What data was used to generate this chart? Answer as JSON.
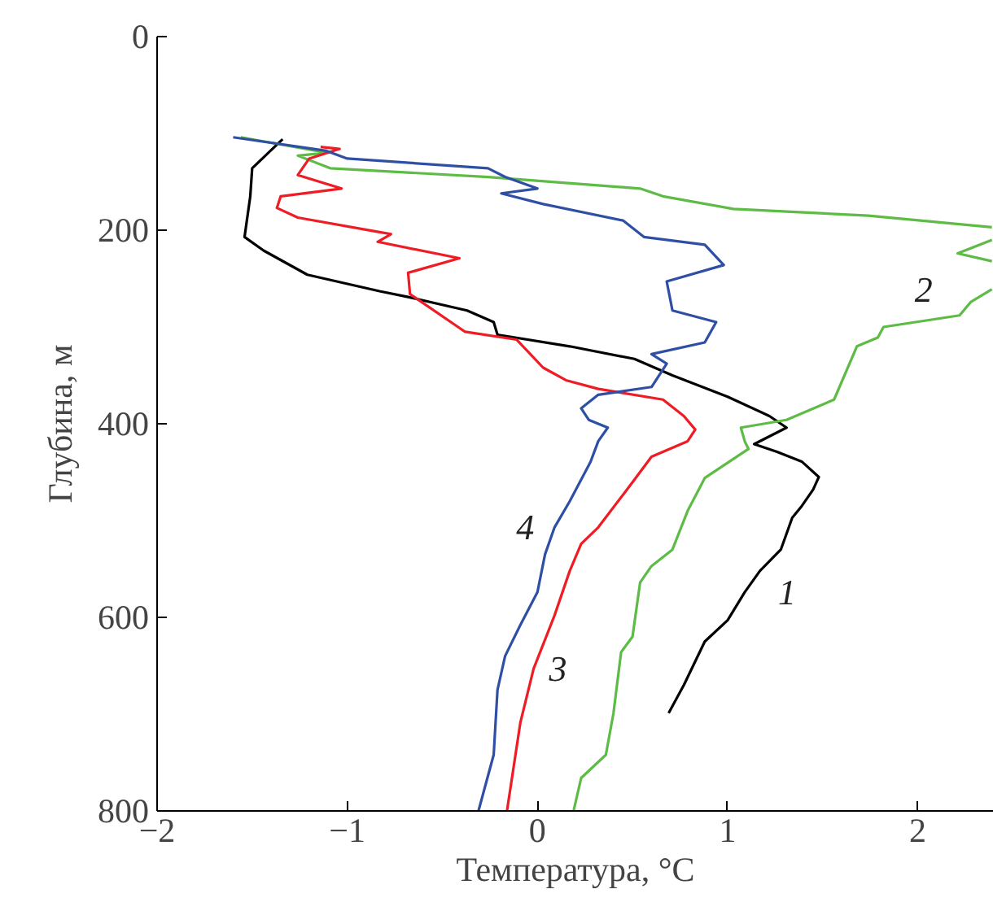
{
  "chart_data": {
    "type": "line",
    "xlabel": "Температура, °C",
    "ylabel": "Глубина, м",
    "xlim": [
      -2,
      2.4
    ],
    "xticks": [
      {
        "value": -2,
        "label": "−2"
      },
      {
        "value": -1,
        "label": "−1"
      },
      0,
      1,
      2
    ],
    "ylim": [
      800,
      0
    ],
    "yticks": [
      0,
      200,
      400,
      600,
      800
    ],
    "grid": false,
    "legend": false,
    "marker": "none",
    "line_style": "solid",
    "series": [
      {
        "name": "1",
        "color": "#000000",
        "x": [
          -1.34,
          -1.5,
          -1.51,
          -1.54,
          -1.44,
          -1.21,
          -0.83,
          -0.68,
          -0.37,
          -0.23,
          -0.21,
          0.17,
          0.51,
          0.71,
          1.0,
          1.22,
          1.31,
          1.14,
          1.26,
          1.39,
          1.48,
          1.45,
          1.39,
          1.34,
          1.28,
          1.17,
          1.09,
          1.0,
          0.88,
          0.77,
          0.69
        ],
        "values": [
          106,
          136,
          165,
          207,
          221,
          246,
          263,
          269,
          283,
          295,
          308,
          320,
          333,
          350,
          372,
          392,
          404,
          421,
          429,
          439,
          455,
          468,
          485,
          497,
          530,
          552,
          574,
          603,
          625,
          670,
          699
        ]
      },
      {
        "name": "2",
        "color": "#5dbb46",
        "x": [
          -1.56,
          -1.11,
          -1.26,
          -1.09,
          -0.26,
          0.54,
          0.66,
          1.03,
          1.74,
          2.39,
          null,
          2.39,
          2.21,
          2.39,
          null,
          2.39,
          2.28,
          2.22,
          1.82,
          1.79,
          1.68,
          1.56,
          1.31,
          1.07,
          1.09,
          1.11,
          0.88,
          0.79,
          0.71,
          0.6,
          0.54,
          0.5,
          0.44,
          0.4,
          0.36,
          0.23,
          0.19
        ],
        "values": [
          104,
          120,
          123,
          136,
          145,
          157,
          165,
          178,
          185,
          197,
          null,
          210,
          224,
          232,
          null,
          261,
          274,
          288,
          300,
          311,
          320,
          375,
          396,
          404,
          418,
          426,
          456,
          490,
          530,
          547,
          564,
          620,
          636,
          699,
          742,
          766,
          800
        ]
      },
      {
        "name": "3",
        "color": "#ee1c24",
        "x": [
          -1.14,
          -1.04,
          -1.2,
          -1.26,
          -1.03,
          -1.35,
          -1.37,
          -1.26,
          -0.83,
          -0.77,
          -0.84,
          -0.41,
          -0.68,
          -0.67,
          -0.38,
          -0.11,
          0.03,
          0.15,
          0.32,
          0.66,
          0.77,
          0.83,
          0.79,
          0.6,
          0.49,
          0.32,
          0.23,
          0.17,
          0.09,
          -0.02,
          -0.09,
          -0.16
        ],
        "values": [
          114,
          116,
          126,
          143,
          157,
          165,
          177,
          187,
          202,
          204,
          212,
          229,
          244,
          266,
          305,
          313,
          342,
          355,
          364,
          375,
          392,
          406,
          418,
          434,
          463,
          507,
          524,
          552,
          598,
          653,
          709,
          800
        ]
      },
      {
        "name": "4",
        "color": "#2e4fa3",
        "x": [
          -1.6,
          -1.11,
          -1.0,
          -0.26,
          -0.17,
          0.0,
          -0.19,
          0.03,
          0.45,
          0.56,
          0.88,
          0.98,
          0.68,
          0.71,
          0.94,
          0.88,
          0.6,
          0.68,
          0.6,
          0.32,
          0.23,
          0.27,
          0.37,
          0.32,
          0.28,
          0.17,
          0.09,
          0.04,
          0.0,
          -0.09,
          -0.17,
          -0.21,
          -0.23,
          -0.31
        ],
        "values": [
          104,
          118,
          126,
          136,
          145,
          157,
          162,
          173,
          190,
          207,
          215,
          236,
          253,
          283,
          295,
          316,
          328,
          338,
          362,
          370,
          384,
          396,
          404,
          418,
          439,
          480,
          507,
          535,
          574,
          608,
          640,
          675,
          742,
          800
        ]
      }
    ]
  }
}
